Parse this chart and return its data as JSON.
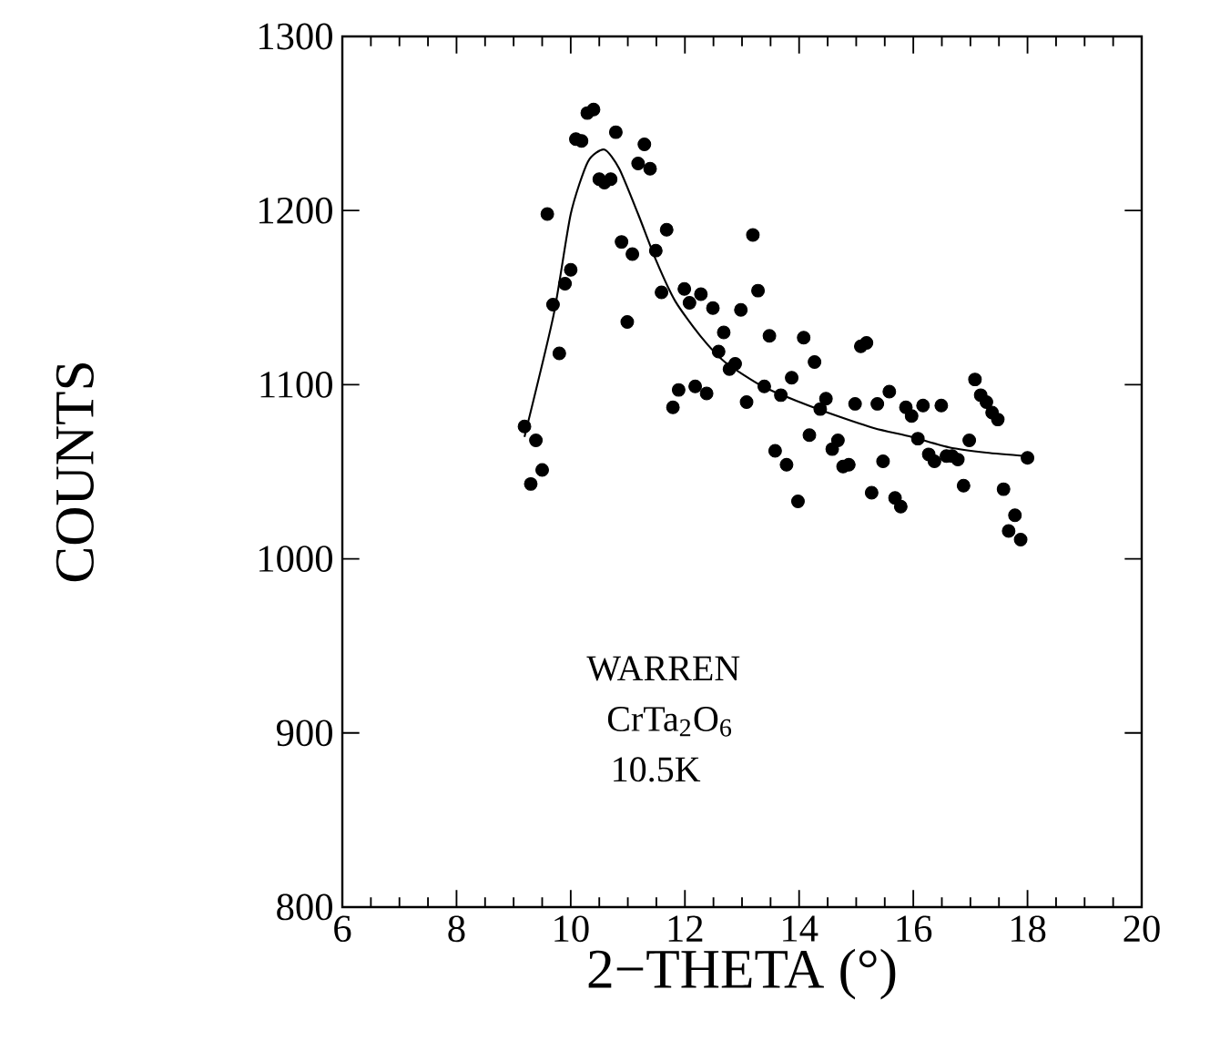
{
  "chart_data": {
    "type": "scatter",
    "xlabel": "2−THETA (°)",
    "ylabel": "COUNTS",
    "xlim": [
      6,
      20
    ],
    "ylim": [
      800,
      1300
    ],
    "xticks": [
      6,
      8,
      10,
      12,
      14,
      16,
      18,
      20
    ],
    "yticks": [
      800,
      900,
      1000,
      1100,
      1200,
      1300
    ],
    "marker": "circle",
    "annotations": [
      "WARREN",
      "CrTa$_{2}$O$_{6}$",
      "10.5K"
    ],
    "series": [
      {
        "color": "#000000",
        "x": [
          9.19,
          9.3,
          9.39,
          9.5,
          9.59,
          9.69,
          9.8,
          9.9,
          10.0,
          10.09,
          10.19,
          10.29,
          10.4,
          10.5,
          10.59,
          10.7,
          10.79,
          10.89,
          10.99,
          11.08,
          11.18,
          11.29,
          11.39,
          11.49,
          11.59,
          11.68,
          11.79,
          11.89,
          11.99,
          12.08,
          12.18,
          12.28,
          12.38,
          12.49,
          12.59,
          12.68,
          12.78,
          12.88,
          12.98,
          13.08,
          13.19,
          13.28,
          13.39,
          13.48,
          13.58,
          13.68,
          13.78,
          13.87,
          13.98,
          14.08,
          14.18,
          14.27,
          14.37,
          14.47,
          14.58,
          14.68,
          14.77,
          14.87,
          14.98,
          15.08,
          15.18,
          15.27,
          15.37,
          15.47,
          15.58,
          15.68,
          15.78,
          15.87,
          15.97,
          16.08,
          16.17,
          16.27,
          16.37,
          16.49,
          16.58,
          16.68,
          16.78,
          16.88,
          16.98,
          17.08,
          17.18,
          17.28,
          17.38,
          17.48,
          17.58,
          17.67,
          17.78,
          17.88,
          18.0
        ],
        "values": [
          1076,
          1043,
          1068,
          1051,
          1198,
          1146,
          1118,
          1158,
          1166,
          1241,
          1240,
          1256,
          1258,
          1218,
          1216,
          1218,
          1245,
          1182,
          1136,
          1175,
          1227,
          1238,
          1224,
          1177,
          1153,
          1189,
          1087,
          1097,
          1155,
          1147,
          1099,
          1152,
          1095,
          1144,
          1119,
          1130,
          1109,
          1112,
          1143,
          1090,
          1186,
          1154,
          1099,
          1128,
          1062,
          1094,
          1054,
          1104,
          1033,
          1127,
          1071,
          1113,
          1086,
          1092,
          1063,
          1068,
          1053,
          1054,
          1089,
          1122,
          1124,
          1038,
          1089,
          1056,
          1096,
          1035,
          1030,
          1087,
          1082,
          1069,
          1088,
          1060,
          1056,
          1088,
          1059,
          1059,
          1057,
          1042,
          1068,
          1103,
          1094,
          1090,
          1084,
          1080,
          1040,
          1016,
          1025,
          1011,
          1058
        ]
      },
      {
        "type": "line",
        "color": "#000000",
        "marker": "none",
        "line_style": "solid",
        "x": [
          9.19,
          9.7,
          10.0,
          10.3,
          10.59,
          10.85,
          11.18,
          11.5,
          11.83,
          12.27,
          12.7,
          13.36,
          14.01,
          14.67,
          15.32,
          15.97,
          16.63,
          17.28,
          18.0
        ],
        "values": [
          1070,
          1140,
          1198,
          1228,
          1235,
          1224,
          1198,
          1171,
          1148,
          1128,
          1113,
          1099,
          1090,
          1082,
          1075,
          1070,
          1064,
          1061,
          1059
        ]
      }
    ]
  }
}
